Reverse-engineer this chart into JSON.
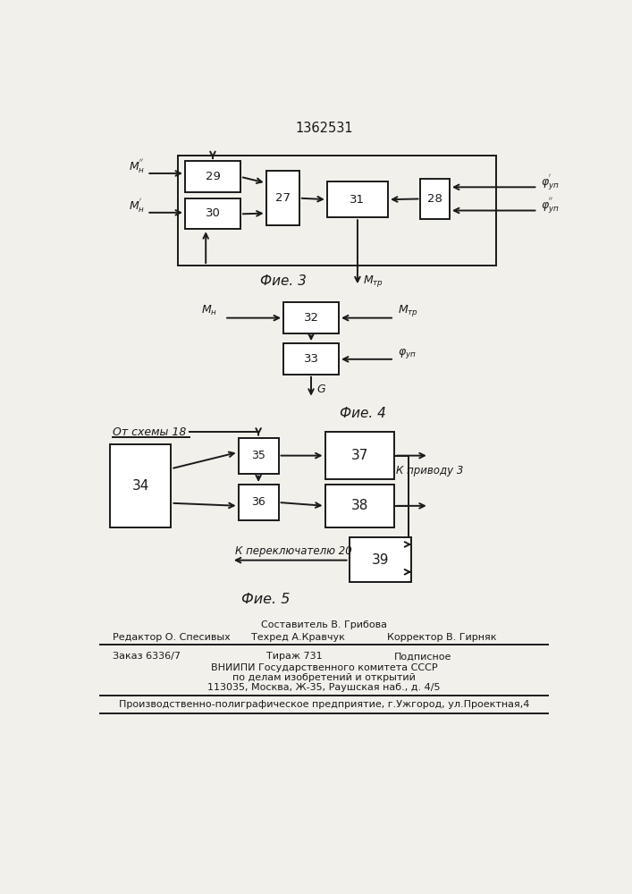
{
  "title": "1362531",
  "fig3_label": "Фие. 3",
  "fig4_label": "Фие. 4",
  "fig5_label": "Фие. 5",
  "bg_color": "#f2f0eb",
  "box_color": "#ffffff",
  "line_color": "#1a1a1a"
}
